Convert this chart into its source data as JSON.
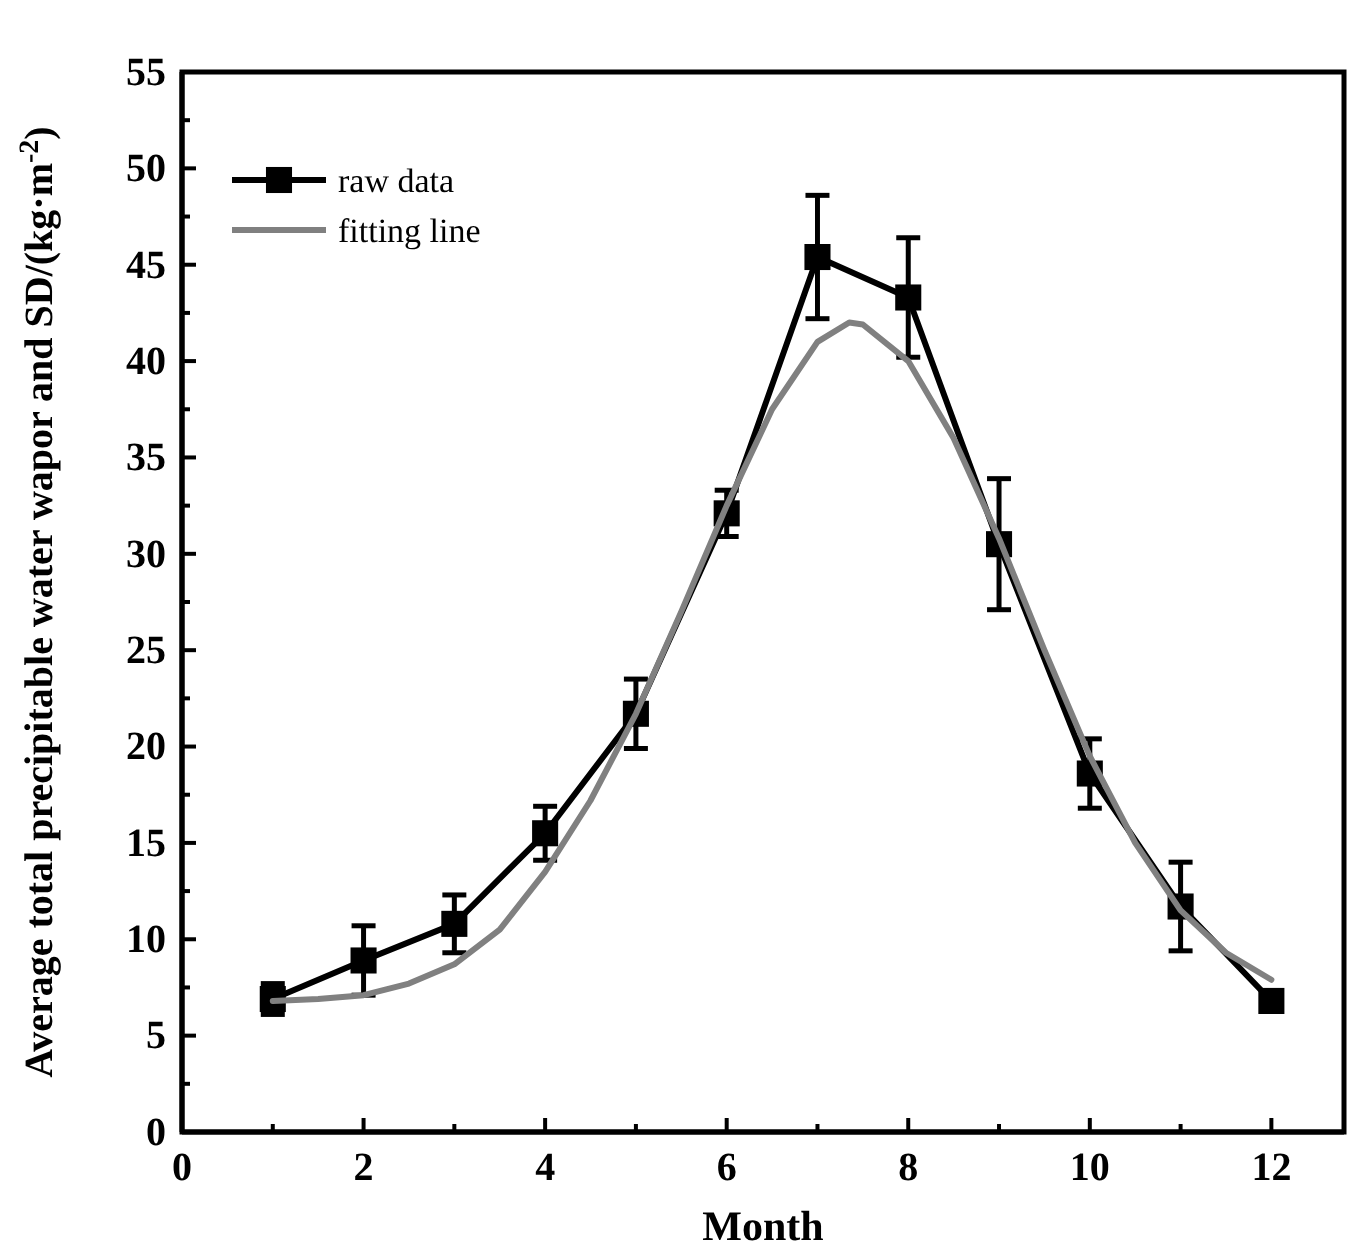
{
  "chart_data": {
    "type": "line",
    "xlabel": "Month",
    "ylabel": "Average total precipitable water wapor and SD/(kg·m$^{-2}$)",
    "xlim": [
      0,
      12.8
    ],
    "xticks": [
      0,
      {
        "value": 1,
        "label": null
      },
      2,
      {
        "value": 3,
        "label": null
      },
      4,
      {
        "value": 5,
        "label": null
      },
      6,
      {
        "value": 7,
        "label": null
      },
      8,
      {
        "value": 9,
        "label": null
      },
      10,
      {
        "value": 11,
        "label": null
      },
      12
    ],
    "ylim": [
      0,
      55
    ],
    "yticks": [
      0,
      {
        "value": 2.5,
        "label": null
      },
      5,
      {
        "value": 7.5,
        "label": null
      },
      10,
      {
        "value": 12.5,
        "label": null
      },
      15,
      {
        "value": 17.5,
        "label": null
      },
      20,
      {
        "value": 22.5,
        "label": null
      },
      25,
      {
        "value": 27.5,
        "label": null
      },
      30,
      {
        "value": 32.5,
        "label": null
      },
      35,
      {
        "value": 37.5,
        "label": null
      },
      40,
      {
        "value": 42.5,
        "label": null
      },
      45,
      {
        "value": 47.5,
        "label": null
      },
      50,
      {
        "value": 52.5,
        "label": null
      },
      55
    ],
    "grid": false,
    "legend": "top left",
    "series": [
      {
        "name": "raw data",
        "color": "#000000",
        "marker": "square",
        "line_style": "solid",
        "x": [
          1,
          2,
          3,
          4,
          5,
          6,
          7,
          8,
          9,
          10,
          11,
          12
        ],
        "values": [
          6.9,
          8.9,
          10.8,
          15.5,
          21.7,
          32.1,
          45.4,
          43.3,
          30.5,
          18.6,
          11.7,
          6.8
        ],
        "errors": [
          0.8,
          1.8,
          1.5,
          1.4,
          1.8,
          1.2,
          3.2,
          3.1,
          3.4,
          1.8,
          2.3,
          0.5
        ]
      },
      {
        "name": "fitting line",
        "color": "#808080",
        "marker": "none",
        "line_style": "solid",
        "x": [
          1,
          1.5,
          2,
          2.5,
          3,
          3.5,
          4,
          4.5,
          5,
          5.5,
          6,
          6.5,
          7,
          7.35,
          7.5,
          8,
          8.5,
          9,
          9.5,
          10,
          10.5,
          11,
          11.5,
          12
        ],
        "values": [
          6.8,
          6.9,
          7.1,
          7.7,
          8.7,
          10.5,
          13.5,
          17.2,
          21.7,
          27.0,
          32.5,
          37.5,
          41.0,
          42.0,
          41.9,
          40.0,
          36.0,
          30.8,
          25.0,
          19.5,
          15.0,
          11.5,
          9.3,
          7.9
        ]
      }
    ]
  }
}
